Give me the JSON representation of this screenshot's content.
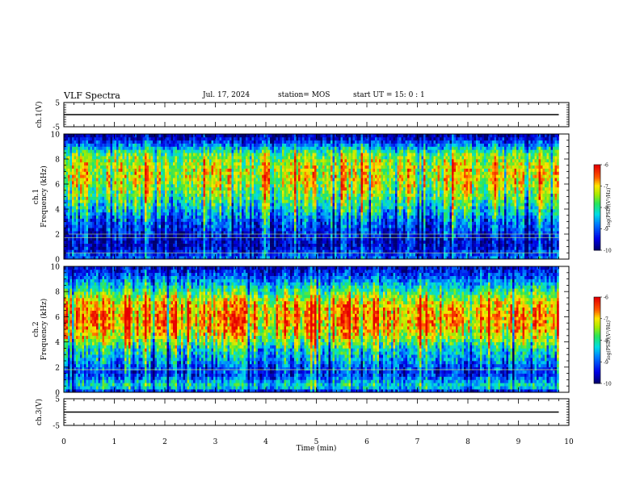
{
  "header": {
    "title": "VLF Spectra",
    "date": "Jul. 17, 2024",
    "station": "station= MOS",
    "start": "start UT =  15: 0  : 1"
  },
  "chart_data": [
    {
      "type": "line",
      "panel": "ch1-waveform",
      "ylabel": "ch.1(V)",
      "ylim": [
        -5,
        5
      ],
      "yticks": [
        "5",
        "-5"
      ],
      "xlim": [
        0,
        10
      ],
      "series": [
        {
          "values_description": "flat",
          "x": [
            0,
            9.8
          ],
          "y": [
            0,
            0
          ]
        }
      ]
    },
    {
      "type": "heatmap",
      "panel": "ch1-spectrogram",
      "ylabel": "ch.1 Frequency (kHz)",
      "ylim": [
        0,
        10
      ],
      "yticks": [
        "0",
        "2",
        "4",
        "6",
        "8",
        "10"
      ],
      "xlim": [
        0,
        10
      ],
      "data_end_min": 9.8,
      "colorbar": {
        "label": "log(PSD)(V²/Hz)",
        "range": [
          -10,
          -6
        ],
        "ticks": [
          "-6",
          "-7",
          "-8",
          "-9",
          "-10"
        ]
      },
      "profile": {
        "freq_khz": [
          0,
          0.5,
          1,
          1.5,
          2,
          2.5,
          3,
          3.5,
          4,
          4.5,
          5,
          5.5,
          6,
          6.5,
          7,
          7.5,
          8,
          8.5,
          9,
          9.5,
          10
        ],
        "mean_log_psd": [
          -8.9,
          -9.2,
          -9.6,
          -9.6,
          -9.4,
          -9.1,
          -9.0,
          -8.6,
          -8.3,
          -8.0,
          -7.7,
          -7.5,
          -7.3,
          -7.2,
          -7.2,
          -7.3,
          -7.5,
          -7.8,
          -8.6,
          -9.4,
          -9.8
        ]
      },
      "horizontal_lines_khz": [
        0.5,
        1.7,
        2.0
      ]
    },
    {
      "type": "heatmap",
      "panel": "ch2-spectrogram",
      "ylabel": "ch.2 Frequency (kHz)",
      "ylim": [
        0,
        10
      ],
      "yticks": [
        "0",
        "2",
        "4",
        "6",
        "8",
        "10"
      ],
      "xlim": [
        0,
        10
      ],
      "data_end_min": 9.8,
      "colorbar": {
        "label": "log(PSD)(V²/Hz)",
        "range": [
          -10,
          -6
        ],
        "ticks": [
          "-6",
          "-7",
          "-8",
          "-9",
          "-10"
        ]
      },
      "profile": {
        "freq_khz": [
          0,
          0.5,
          1,
          1.5,
          2,
          2.5,
          3,
          3.5,
          4,
          4.5,
          5,
          5.5,
          6,
          6.5,
          7,
          7.5,
          8,
          8.5,
          9,
          9.5,
          10
        ],
        "mean_log_psd": [
          -9.6,
          -8.1,
          -8.8,
          -9.3,
          -9.1,
          -8.7,
          -8.5,
          -8.2,
          -7.7,
          -7.3,
          -7.0,
          -6.85,
          -6.8,
          -6.85,
          -7.0,
          -7.4,
          -7.9,
          -8.4,
          -8.9,
          -9.3,
          -9.6
        ]
      },
      "horizontal_lines_khz": [
        1.8
      ]
    },
    {
      "type": "line",
      "panel": "ch3-waveform",
      "ylabel": "ch.3(V)",
      "ylim": [
        -5,
        5
      ],
      "yticks": [
        "5",
        "-5"
      ],
      "xlim": [
        0,
        10
      ],
      "xlabel": "Time (min)",
      "xticks": [
        "0",
        "1",
        "2",
        "3",
        "4",
        "5",
        "6",
        "7",
        "8",
        "9",
        "10"
      ],
      "series": [
        {
          "values_description": "flat",
          "x": [
            0,
            9.8
          ],
          "y": [
            0,
            0
          ]
        }
      ]
    }
  ]
}
